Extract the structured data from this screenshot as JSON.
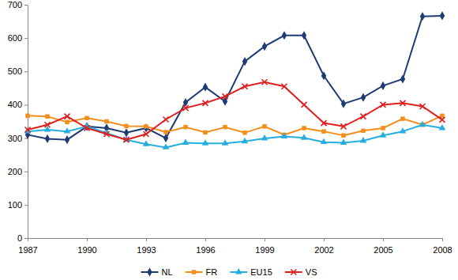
{
  "chart_data": {
    "type": "line",
    "x": [
      1987,
      1988,
      1989,
      1990,
      1991,
      1992,
      1993,
      1994,
      1995,
      1996,
      1997,
      1998,
      1999,
      2000,
      2001,
      2002,
      2003,
      2004,
      2005,
      2006,
      2007,
      2008
    ],
    "xlim": [
      1987,
      2008
    ],
    "xticks": [
      1987,
      1990,
      1993,
      1996,
      1999,
      2002,
      2005,
      2008
    ],
    "ylim": [
      0,
      700
    ],
    "yticks": [
      0,
      100,
      200,
      300,
      400,
      500,
      600,
      700
    ],
    "grid": false,
    "legend": "bottom",
    "series": [
      {
        "name": "NL",
        "color": "#1f3b73",
        "marker": "diamond",
        "values": [
          310,
          298,
          295,
          335,
          330,
          316,
          330,
          300,
          407,
          453,
          410,
          530,
          575,
          608,
          608,
          487,
          403,
          422,
          457,
          477,
          665,
          667
        ]
      },
      {
        "name": "FR",
        "color": "#f28e1c",
        "marker": "square",
        "values": [
          367,
          365,
          348,
          360,
          350,
          336,
          335,
          318,
          333,
          317,
          333,
          316,
          335,
          310,
          330,
          320,
          308,
          322,
          330,
          358,
          340,
          367
        ]
      },
      {
        "name": "EU15",
        "color": "#27aee0",
        "marker": "triangle",
        "values": [
          320,
          325,
          320,
          335,
          315,
          295,
          282,
          272,
          286,
          284,
          284,
          290,
          299,
          305,
          301,
          288,
          286,
          292,
          308,
          320,
          340,
          330
        ]
      },
      {
        "name": "VS",
        "color": "#e0201f",
        "marker": "x",
        "values": [
          325,
          340,
          365,
          330,
          312,
          295,
          312,
          356,
          390,
          405,
          425,
          455,
          468,
          455,
          400,
          345,
          335,
          365,
          400,
          405,
          395,
          355
        ]
      }
    ]
  }
}
